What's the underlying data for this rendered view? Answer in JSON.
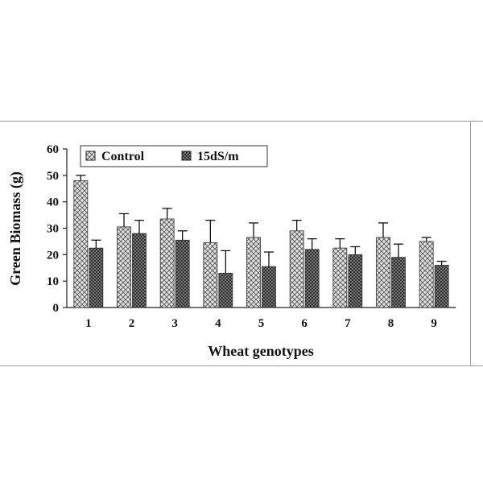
{
  "chart_data": {
    "type": "bar",
    "title": "",
    "xlabel": "Wheat genotypes",
    "ylabel": "Green Biomass (g)",
    "ylim": [
      0,
      60
    ],
    "yticks": [
      "0",
      "10",
      "20",
      "30",
      "40",
      "50",
      "60"
    ],
    "categories": [
      "1",
      "2",
      "3",
      "4",
      "5",
      "6",
      "7",
      "8",
      "9"
    ],
    "series": [
      {
        "name": "Control",
        "values": [
          48,
          30.5,
          33.5,
          24.5,
          26.5,
          29,
          22.5,
          26.5,
          25
        ],
        "errors": [
          2,
          5,
          4,
          8.5,
          5.5,
          4,
          3.5,
          5.5,
          1.5
        ]
      },
      {
        "name": "15dS/m",
        "values": [
          22.5,
          28,
          25.5,
          13,
          15.5,
          22,
          20,
          19,
          16
        ],
        "errors": [
          3,
          5,
          3.5,
          8.5,
          5.5,
          4,
          3,
          5,
          1.5
        ]
      }
    ],
    "legend_position": "top",
    "grid": false,
    "colors": {
      "control": "#e2e2e2",
      "salt": "#8f8f8f",
      "border": "#9a9a9a"
    }
  }
}
